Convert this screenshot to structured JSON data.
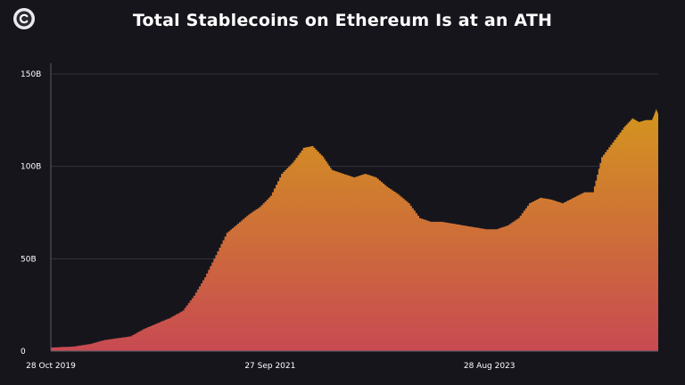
{
  "header": {
    "title": "Total Stablecoins on Ethereum Is at an ATH",
    "logo_icon": "coinstats-logo-icon"
  },
  "colors": {
    "background": "#16151c",
    "gradient_top": "#d4951e",
    "gradient_bottom": "#c84a52",
    "gridline": "#3a3942",
    "text": "#ffffff"
  },
  "chart_data": {
    "type": "area",
    "title": "Total Stablecoins on Ethereum Is at an ATH",
    "xlabel": "",
    "ylabel": "",
    "grid": "horizontal",
    "ylim": [
      0,
      150
    ],
    "y_unit": "B",
    "y_ticks": [
      {
        "value": 0,
        "label": "0"
      },
      {
        "value": 50,
        "label": "50B"
      },
      {
        "value": 100,
        "label": "100B"
      },
      {
        "value": 150,
        "label": "150B"
      }
    ],
    "x_ticks": [
      {
        "date": "2019-10-28",
        "label": "28 Oct 2019"
      },
      {
        "date": "2021-09-27",
        "label": "27 Sep 2021"
      },
      {
        "date": "2023-08-28",
        "label": "28 Aug 2023"
      }
    ],
    "xlim": [
      "2019-10-28",
      "2025-02-17"
    ],
    "series": [
      {
        "points": [
          [
            "2019-10-28",
            2
          ],
          [
            "2020-01-06",
            2.5
          ],
          [
            "2020-03-02",
            4
          ],
          [
            "2020-04-13",
            6
          ],
          [
            "2020-05-25",
            7
          ],
          [
            "2020-07-06",
            8
          ],
          [
            "2020-08-17",
            12
          ],
          [
            "2020-09-28",
            15
          ],
          [
            "2020-11-09",
            18
          ],
          [
            "2020-12-21",
            22
          ],
          [
            "2021-01-25",
            30
          ],
          [
            "2021-03-01",
            40
          ],
          [
            "2021-04-05",
            52
          ],
          [
            "2021-05-10",
            64
          ],
          [
            "2021-06-14",
            69
          ],
          [
            "2021-07-19",
            74
          ],
          [
            "2021-08-23",
            78
          ],
          [
            "2021-09-27",
            84
          ],
          [
            "2021-11-01",
            96
          ],
          [
            "2021-12-06",
            102
          ],
          [
            "2022-01-10",
            110
          ],
          [
            "2022-02-07",
            111
          ],
          [
            "2022-03-14",
            105
          ],
          [
            "2022-04-11",
            98
          ],
          [
            "2022-05-16",
            96
          ],
          [
            "2022-06-20",
            94
          ],
          [
            "2022-07-25",
            96
          ],
          [
            "2022-08-29",
            94
          ],
          [
            "2022-10-03",
            89
          ],
          [
            "2022-11-07",
            85
          ],
          [
            "2022-12-12",
            80
          ],
          [
            "2023-01-16",
            72
          ],
          [
            "2023-02-20",
            70
          ],
          [
            "2023-03-27",
            70
          ],
          [
            "2023-05-01",
            69
          ],
          [
            "2023-06-05",
            68
          ],
          [
            "2023-07-10",
            67
          ],
          [
            "2023-08-14",
            66
          ],
          [
            "2023-09-18",
            66
          ],
          [
            "2023-10-23",
            68
          ],
          [
            "2023-11-27",
            72
          ],
          [
            "2024-01-01",
            80
          ],
          [
            "2024-02-05",
            83
          ],
          [
            "2024-03-11",
            82
          ],
          [
            "2024-04-15",
            80
          ],
          [
            "2024-05-20",
            83
          ],
          [
            "2024-06-24",
            86
          ],
          [
            "2024-07-22",
            86
          ],
          [
            "2024-08-19",
            105
          ],
          [
            "2024-09-23",
            113
          ],
          [
            "2024-10-28",
            121
          ],
          [
            "2024-11-25",
            126
          ],
          [
            "2024-12-16",
            124
          ],
          [
            "2025-01-06",
            125
          ],
          [
            "2025-01-27",
            125
          ],
          [
            "2025-02-10",
            131
          ],
          [
            "2025-02-17",
            128
          ]
        ]
      }
    ]
  }
}
